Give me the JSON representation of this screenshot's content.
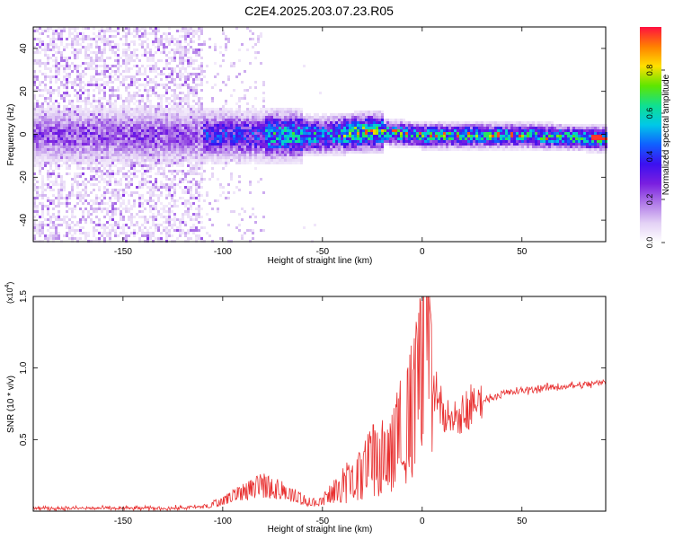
{
  "title": "C2E4.2025.203.07.23.R05",
  "chart_data": [
    {
      "type": "heatmap",
      "xlabel": "Height of straight line (km)",
      "ylabel": "Frequency (Hz)",
      "xlim": [
        -195,
        92
      ],
      "ylim": [
        -50,
        50
      ],
      "x_ticks": [
        -150,
        -100,
        -50,
        0,
        50
      ],
      "y_ticks": [
        -40,
        -20,
        0,
        20,
        40
      ],
      "colorbar": {
        "label": "Normalized spectral amplitude",
        "range": [
          0,
          1
        ],
        "ticks": [
          0.0,
          0.2,
          0.4,
          0.6,
          0.8
        ],
        "tick_labels": [
          "0.0",
          "0.2",
          "0.4",
          "0.6",
          "0.8"
        ],
        "colormap": [
          "#ffffff",
          "#e3d1f5",
          "#b07ae8",
          "#7a1fe0",
          "#3c10f0",
          "#1060ff",
          "#00c8e8",
          "#10e090",
          "#5ee600",
          "#ffe000",
          "#ff8000",
          "#ff1040"
        ]
      },
      "ridge": {
        "description_free_values": true,
        "x": [
          -195,
          -150,
          -100,
          -75,
          -50,
          -25,
          0,
          25,
          50,
          92
        ],
        "center_hz": [
          0,
          0,
          0,
          0,
          0,
          2,
          0,
          0,
          0,
          -1.5
        ]
      },
      "grid": false
    },
    {
      "type": "line",
      "xlabel": "Height of straight line (km)",
      "ylabel": "SNR (10 * v/v)",
      "y_multiplier": "(x10^4)",
      "y_multiplier_base": "(x10",
      "y_multiplier_exp": "4",
      "y_multiplier_close": ")",
      "xlim": [
        -195,
        92
      ],
      "ylim": [
        0,
        1.5
      ],
      "x_ticks": [
        -150,
        -100,
        -50,
        0,
        50
      ],
      "y_ticks": [
        0.5,
        1.0,
        1.5
      ],
      "y_tick_labels": [
        "0.5",
        "1.0",
        "1.5"
      ],
      "line_color": "#e83030",
      "envelope": {
        "x": [
          -195,
          -150,
          -125,
          -110,
          -100,
          -90,
          -80,
          -70,
          -60,
          -55,
          -50,
          -45,
          -40,
          -35,
          -30,
          -25,
          -20,
          -15,
          -10,
          -5,
          0,
          2,
          5,
          10,
          15,
          20,
          25,
          30,
          40,
          50,
          60,
          70,
          80,
          92
        ],
        "y": [
          0.02,
          0.02,
          0.02,
          0.03,
          0.07,
          0.13,
          0.18,
          0.15,
          0.08,
          0.06,
          0.07,
          0.12,
          0.18,
          0.22,
          0.28,
          0.35,
          0.38,
          0.4,
          0.6,
          0.75,
          1.05,
          1.5,
          0.9,
          0.7,
          0.6,
          0.67,
          0.72,
          0.77,
          0.82,
          0.84,
          0.86,
          0.87,
          0.88,
          0.9
        ]
      },
      "series": [
        {
          "color": "#e83030"
        }
      ]
    }
  ]
}
